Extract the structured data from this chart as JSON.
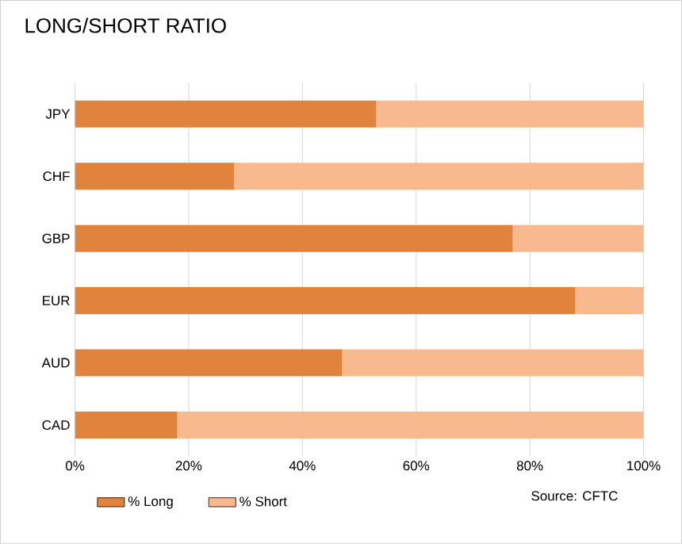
{
  "chart_data": {
    "type": "bar",
    "title": "LONG/SHORT RATIO",
    "orientation": "horizontal",
    "stacked": true,
    "categories": [
      "JPY",
      "CHF",
      "GBP",
      "EUR",
      "AUD",
      "CAD"
    ],
    "series": [
      {
        "name": "% Long",
        "color": "#e0843d",
        "values": [
          53,
          28,
          77,
          88,
          47,
          18
        ]
      },
      {
        "name": "% Short",
        "color": "#f8b98e",
        "values": [
          47,
          72,
          23,
          12,
          53,
          82
        ]
      }
    ],
    "xlim": [
      0,
      100
    ],
    "xticks": [
      {
        "value": 0,
        "label": "0%"
      },
      {
        "value": 20,
        "label": "20%"
      },
      {
        "value": 40,
        "label": "40%"
      },
      {
        "value": 60,
        "label": "60%"
      },
      {
        "value": 80,
        "label": "80%"
      },
      {
        "value": 100,
        "label": "100%"
      }
    ],
    "grid": "x",
    "legend": "bottom",
    "annotations": [
      "Source: CFTC"
    ]
  }
}
